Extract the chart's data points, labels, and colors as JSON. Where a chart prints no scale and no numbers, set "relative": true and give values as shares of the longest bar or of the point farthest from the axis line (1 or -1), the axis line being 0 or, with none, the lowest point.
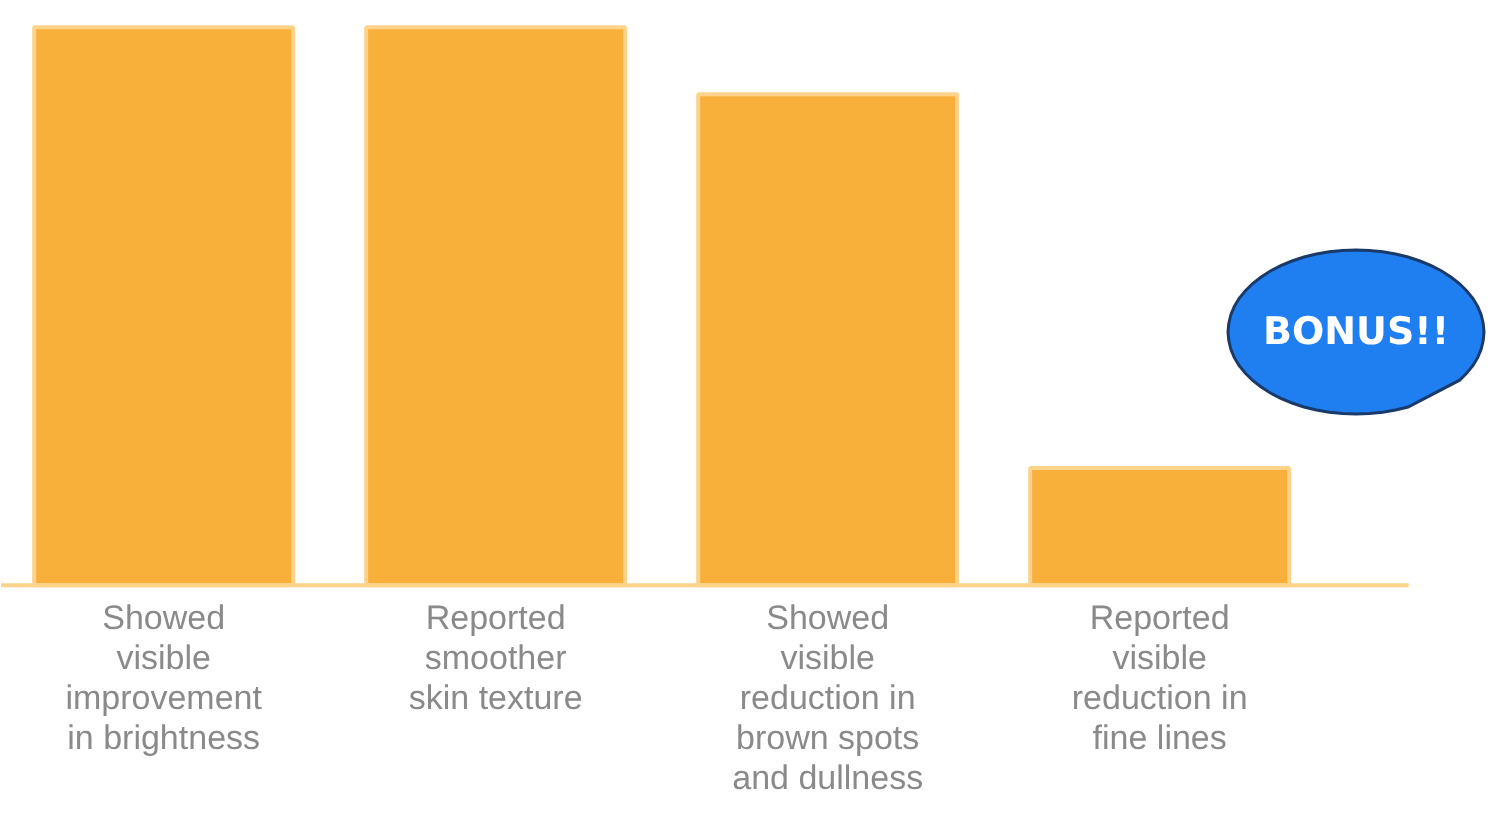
{
  "chart_data": {
    "type": "bar",
    "relative": true,
    "categories": [
      "Showed\nvisible\nimprovement\nin brightness",
      "Reported\nsmoother\nskin texture",
      "Showed\nvisible\nreduction in\nbrown spots\nand dullness",
      "Reported\nvisible\nreduction in\nfine lines"
    ],
    "values": [
      1,
      1,
      0.88,
      0.21
    ],
    "color": "#f8b03a",
    "annotations": [
      "BONUS!!"
    ],
    "grid": false
  }
}
